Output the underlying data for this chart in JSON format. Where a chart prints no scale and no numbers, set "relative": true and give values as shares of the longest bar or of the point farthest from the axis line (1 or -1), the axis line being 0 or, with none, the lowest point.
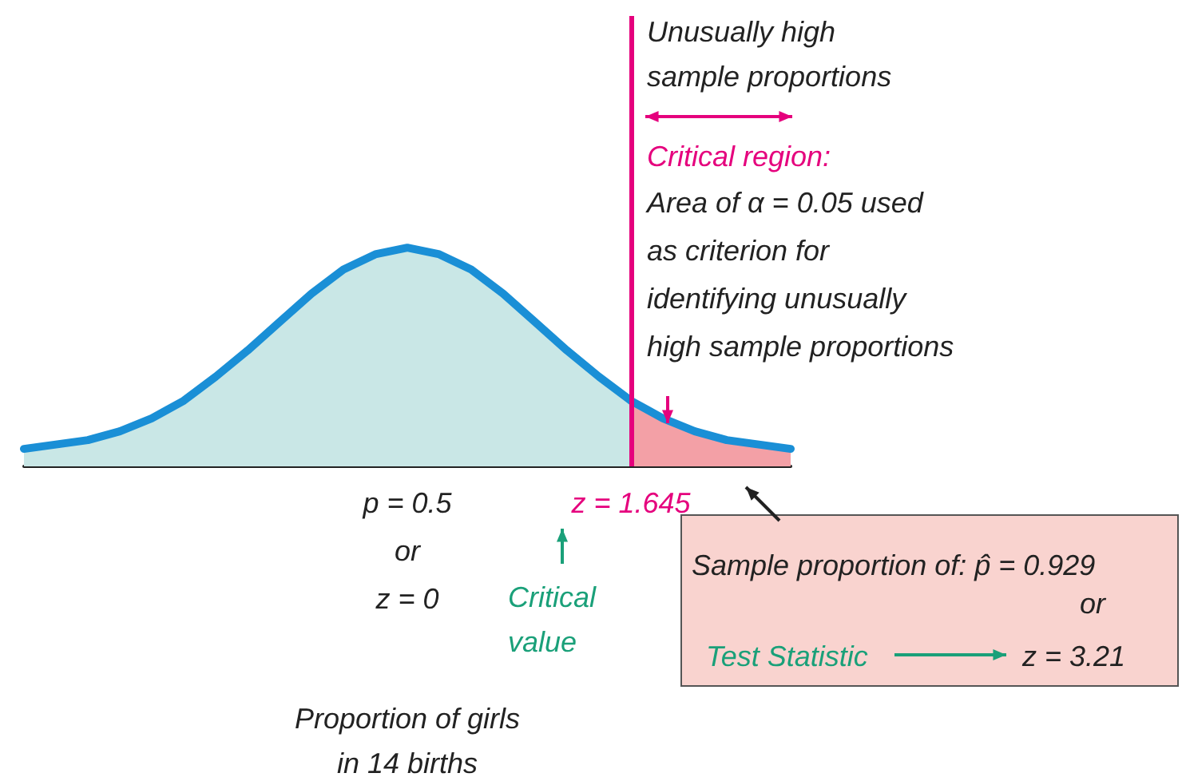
{
  "chart_data": {
    "type": "area",
    "relative": true,
    "xlabel": "Proportion of girls\nin 14 births",
    "categories": [
      null,
      null,
      null,
      null,
      null,
      null,
      null,
      null,
      null,
      null,
      null,
      null,
      "p = 0.5\nor\nz = 0",
      null,
      null,
      null,
      null,
      null,
      null,
      "z = 1.645",
      null,
      null,
      null,
      null,
      null
    ],
    "tick_labels": "x",
    "marker": "none",
    "series": [
      {
        "color": "#c9e7e6",
        "values": [
          0.08,
          0.1,
          0.12,
          0.16,
          0.22,
          0.3,
          0.41,
          0.53,
          0.66,
          0.79,
          0.9,
          0.97,
          1,
          0.97,
          0.9,
          0.79,
          0.66,
          0.53,
          0.41,
          0.3,
          null,
          null,
          null,
          null,
          null
        ]
      },
      {
        "color": "#f3a0a6",
        "values": [
          null,
          null,
          null,
          null,
          null,
          null,
          null,
          null,
          null,
          null,
          null,
          null,
          null,
          null,
          null,
          null,
          null,
          null,
          null,
          0.3,
          0.22,
          0.16,
          0.12,
          0.1,
          0.08
        ]
      },
      {
        "type": "line",
        "color": "#1a8fd6",
        "line_style": "solid",
        "values": [
          0.08,
          0.1,
          0.12,
          0.16,
          0.22,
          0.3,
          0.41,
          0.53,
          0.66,
          0.79,
          0.9,
          0.97,
          1,
          0.97,
          0.9,
          0.79,
          0.66,
          0.53,
          0.41,
          0.3,
          0.22,
          0.16,
          0.12,
          0.1,
          0.08
        ]
      }
    ],
    "ref_lines": [
      {
        "axis": "x",
        "value": "z = 1.645",
        "color": "#e5007d",
        "line_style": "solid"
      }
    ],
    "annotations": [
      "Unusually high\nsample proportions",
      "Critical region:",
      "Area of α = 0.05 used\nas criterion for\nidentifying unusually\nhigh sample proportions",
      "Critical\nvalue",
      "Sample proportion of: p̂ = 0.929",
      "or",
      "Test Statistic",
      "z = 3.21"
    ]
  }
}
